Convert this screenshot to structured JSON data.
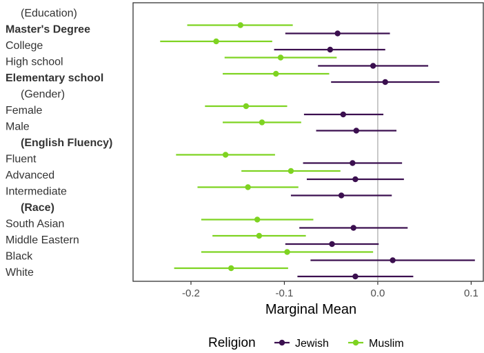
{
  "chart_data": {
    "type": "scatter",
    "xlabel": "Marginal Mean",
    "xlim": [
      -0.262,
      0.113
    ],
    "xticks": [
      -0.2,
      -0.1,
      0.0,
      0.1
    ],
    "xtick_labels": [
      "-0.2",
      "-0.1",
      "0.0",
      "0.1"
    ],
    "reference_line": 0.0,
    "legend": {
      "title": "Religion",
      "position": "bottom"
    },
    "rows": [
      {
        "label": "(Education)",
        "bold": false,
        "header": true
      },
      {
        "label": "Master's Degree",
        "bold": true,
        "header": false
      },
      {
        "label": "College",
        "bold": false,
        "header": false
      },
      {
        "label": "High school",
        "bold": false,
        "header": false
      },
      {
        "label": "Elementary school",
        "bold": true,
        "header": false
      },
      {
        "label": "(Gender)",
        "bold": false,
        "header": true
      },
      {
        "label": "Female",
        "bold": false,
        "header": false
      },
      {
        "label": "Male",
        "bold": false,
        "header": false
      },
      {
        "label": "(English Fluency)",
        "bold": true,
        "header": true
      },
      {
        "label": "Fluent",
        "bold": false,
        "header": false
      },
      {
        "label": "Advanced",
        "bold": false,
        "header": false
      },
      {
        "label": "Intermediate",
        "bold": false,
        "header": false
      },
      {
        "label": "(Race)",
        "bold": true,
        "header": true
      },
      {
        "label": "South Asian",
        "bold": false,
        "header": false
      },
      {
        "label": "Middle Eastern",
        "bold": false,
        "header": false
      },
      {
        "label": "Black",
        "bold": false,
        "header": false
      },
      {
        "label": "White",
        "bold": false,
        "header": false
      }
    ],
    "series": [
      {
        "name": "Jewish",
        "color": "#3b0f4f",
        "points": [
          {
            "row": "Master's Degree",
            "estimate": -0.043,
            "low": -0.099,
            "high": 0.013
          },
          {
            "row": "College",
            "estimate": -0.051,
            "low": -0.111,
            "high": 0.008
          },
          {
            "row": "High school",
            "estimate": -0.005,
            "low": -0.064,
            "high": 0.054
          },
          {
            "row": "Elementary school",
            "estimate": 0.008,
            "low": -0.05,
            "high": 0.066
          },
          {
            "row": "Female",
            "estimate": -0.037,
            "low": -0.079,
            "high": 0.006
          },
          {
            "row": "Male",
            "estimate": -0.023,
            "low": -0.066,
            "high": 0.02
          },
          {
            "row": "Fluent",
            "estimate": -0.027,
            "low": -0.08,
            "high": 0.026
          },
          {
            "row": "Advanced",
            "estimate": -0.024,
            "low": -0.076,
            "high": 0.028
          },
          {
            "row": "Intermediate",
            "estimate": -0.039,
            "low": -0.093,
            "high": 0.015
          },
          {
            "row": "South Asian",
            "estimate": -0.026,
            "low": -0.084,
            "high": 0.032
          },
          {
            "row": "Middle Eastern",
            "estimate": -0.049,
            "low": -0.099,
            "high": 0.001
          },
          {
            "row": "Black",
            "estimate": 0.016,
            "low": -0.072,
            "high": 0.104
          },
          {
            "row": "White",
            "estimate": -0.024,
            "low": -0.086,
            "high": 0.038
          }
        ]
      },
      {
        "name": "Muslim",
        "color": "#7ed321",
        "points": [
          {
            "row": "Master's Degree",
            "estimate": -0.147,
            "low": -0.204,
            "high": -0.091
          },
          {
            "row": "College",
            "estimate": -0.173,
            "low": -0.233,
            "high": -0.113
          },
          {
            "row": "High school",
            "estimate": -0.104,
            "low": -0.164,
            "high": -0.044
          },
          {
            "row": "Elementary school",
            "estimate": -0.109,
            "low": -0.166,
            "high": -0.052
          },
          {
            "row": "Female",
            "estimate": -0.141,
            "low": -0.185,
            "high": -0.097
          },
          {
            "row": "Male",
            "estimate": -0.124,
            "low": -0.166,
            "high": -0.082
          },
          {
            "row": "Fluent",
            "estimate": -0.163,
            "low": -0.216,
            "high": -0.11
          },
          {
            "row": "Advanced",
            "estimate": -0.093,
            "low": -0.146,
            "high": -0.04
          },
          {
            "row": "Intermediate",
            "estimate": -0.139,
            "low": -0.193,
            "high": -0.085
          },
          {
            "row": "South Asian",
            "estimate": -0.129,
            "low": -0.189,
            "high": -0.069
          },
          {
            "row": "Middle Eastern",
            "estimate": -0.127,
            "low": -0.177,
            "high": -0.077
          },
          {
            "row": "Black",
            "estimate": -0.097,
            "low": -0.189,
            "high": -0.005
          },
          {
            "row": "White",
            "estimate": -0.157,
            "low": -0.218,
            "high": -0.096
          }
        ]
      }
    ]
  }
}
